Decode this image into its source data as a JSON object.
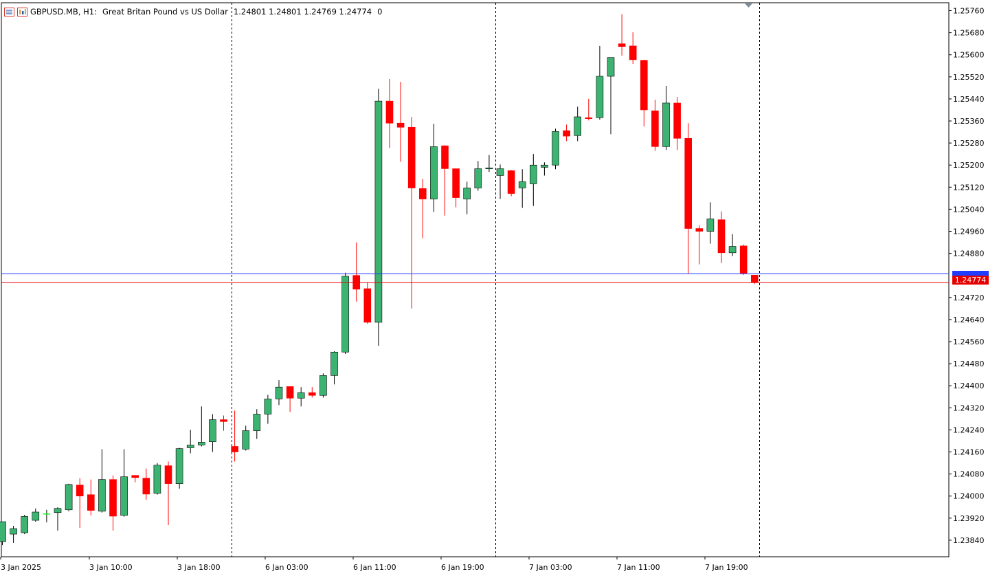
{
  "header": {
    "symbol": "GBPUSD.MB, H1:",
    "description": "Great Britan Pound vs US Dollar",
    "ohlc": "1.24801 1.24801 1.24769 1.24774",
    "volume": "0",
    "icons": [
      "chart-window-icon",
      "chart-properties-icon"
    ]
  },
  "chart_data": {
    "type": "candlestick",
    "symbol": "GBPUSD.MB",
    "timeframe": "H1",
    "ylim": [
      1.238,
      1.2578
    ],
    "y_ticks": [
      "1.25760",
      "1.25680",
      "1.25600",
      "1.25520",
      "1.25440",
      "1.25360",
      "1.25280",
      "1.25200",
      "1.25120",
      "1.25040",
      "1.24960",
      "1.24880",
      "1.24720",
      "1.24640",
      "1.24560",
      "1.24480",
      "1.24400",
      "1.24320",
      "1.24240",
      "1.24160",
      "1.24080",
      "1.24000",
      "1.23920",
      "1.23840"
    ],
    "x_ticks": [
      "3 Jan 2025",
      "3 Jan 10:00",
      "3 Jan 18:00",
      "6 Jan 03:00",
      "6 Jan 11:00",
      "6 Jan 19:00",
      "7 Jan 03:00",
      "7 Jan 11:00",
      "7 Jan 19:00"
    ],
    "bid_price": "1.24774",
    "bid_value": 1.24774,
    "ask_value": 1.24806,
    "up_color": "#3cb371",
    "down_color": "#ff0000",
    "doji_color": "#00ff00",
    "candles": [
      [
        1.23835,
        1.23907,
        1.23822,
        1.23907
      ],
      [
        1.23862,
        1.23892,
        1.2383,
        1.23882
      ],
      [
        1.23867,
        1.23932,
        1.23862,
        1.23926
      ],
      [
        1.23912,
        1.23955,
        1.23907,
        1.23942
      ],
      [
        1.23935,
        1.2395,
        1.23905,
        1.23935
      ],
      [
        1.2394,
        1.2396,
        1.23875,
        1.23955
      ],
      [
        1.2395,
        1.24045,
        1.23945,
        1.24042
      ],
      [
        1.2404,
        1.24065,
        1.23885,
        1.24
      ],
      [
        1.24005,
        1.2406,
        1.2393,
        1.23948
      ],
      [
        1.23945,
        1.2417,
        1.2394,
        1.2406
      ],
      [
        1.2406,
        1.24075,
        1.23875,
        1.23927
      ],
      [
        1.2393,
        1.2417,
        1.23925,
        1.2407
      ],
      [
        1.24075,
        1.24075,
        1.2405,
        1.24067
      ],
      [
        1.24065,
        1.241,
        1.23987,
        1.24007
      ],
      [
        1.2401,
        1.2412,
        1.24005,
        1.24112
      ],
      [
        1.2411,
        1.24125,
        1.23895,
        1.24045
      ],
      [
        1.24045,
        1.24175,
        1.24027,
        1.24172
      ],
      [
        1.24175,
        1.2424,
        1.24155,
        1.24185
      ],
      [
        1.24185,
        1.24325,
        1.2418,
        1.24195
      ],
      [
        1.24197,
        1.24297,
        1.2416,
        1.24277
      ],
      [
        1.24277,
        1.24292,
        1.24237,
        1.2427
      ],
      [
        1.2418,
        1.2431,
        1.24125,
        1.2416
      ],
      [
        1.2417,
        1.24255,
        1.24165,
        1.24237
      ],
      [
        1.24237,
        1.24315,
        1.24207,
        1.24297
      ],
      [
        1.24297,
        1.24367,
        1.24262,
        1.24352
      ],
      [
        1.24352,
        1.2442,
        1.2433,
        1.24395
      ],
      [
        1.24397,
        1.24395,
        1.24305,
        1.24355
      ],
      [
        1.24355,
        1.24395,
        1.24325,
        1.24375
      ],
      [
        1.24375,
        1.24395,
        1.24357,
        1.24365
      ],
      [
        1.24365,
        1.24445,
        1.24357,
        1.24437
      ],
      [
        1.24437,
        1.24525,
        1.24405,
        1.24522
      ],
      [
        1.24522,
        1.2481,
        1.24515,
        1.24797
      ],
      [
        1.248,
        1.2492,
        1.24705,
        1.2475
      ],
      [
        1.24752,
        1.24775,
        1.24625,
        1.2463
      ],
      [
        1.2463,
        1.25477,
        1.24545,
        1.25432
      ],
      [
        1.25432,
        1.25512,
        1.25262,
        1.25352
      ],
      [
        1.25352,
        1.25502,
        1.25212,
        1.25337
      ],
      [
        1.25337,
        1.25375,
        1.2468,
        1.25117
      ],
      [
        1.25115,
        1.2515,
        1.24935,
        1.25077
      ],
      [
        1.25077,
        1.2535,
        1.2503,
        1.25267
      ],
      [
        1.2527,
        1.25272,
        1.25017,
        1.25187
      ],
      [
        1.25187,
        1.25187,
        1.25047,
        1.25082
      ],
      [
        1.25077,
        1.2514,
        1.25022,
        1.25117
      ],
      [
        1.25117,
        1.25215,
        1.25107,
        1.25187
      ],
      [
        1.25187,
        1.25237,
        1.25175,
        1.2519
      ],
      [
        1.25162,
        1.25202,
        1.25077,
        1.25187
      ],
      [
        1.2518,
        1.25182,
        1.25087,
        1.25097
      ],
      [
        1.25117,
        1.25185,
        1.25045,
        1.2514
      ],
      [
        1.25132,
        1.2524,
        1.25052,
        1.252
      ],
      [
        1.25192,
        1.2521,
        1.25162,
        1.252
      ],
      [
        1.252,
        1.25332,
        1.25185,
        1.25322
      ],
      [
        1.25325,
        1.25347,
        1.25287,
        1.25305
      ],
      [
        1.25307,
        1.25412,
        1.25287,
        1.25375
      ],
      [
        1.25372,
        1.2544,
        1.25362,
        1.2537
      ],
      [
        1.25372,
        1.25632,
        1.25365,
        1.25522
      ],
      [
        1.25522,
        1.2559,
        1.25312,
        1.2559
      ],
      [
        1.2564,
        1.25747,
        1.25597,
        1.2563
      ],
      [
        1.25632,
        1.25682,
        1.25567,
        1.25582
      ],
      [
        1.2558,
        1.25582,
        1.2534,
        1.254
      ],
      [
        1.25397,
        1.25437,
        1.25252,
        1.25267
      ],
      [
        1.25267,
        1.25487,
        1.25255,
        1.25425
      ],
      [
        1.25425,
        1.25447,
        1.25255,
        1.25297
      ],
      [
        1.25297,
        1.25352,
        1.24805,
        1.2497
      ],
      [
        1.2497,
        1.24982,
        1.2484,
        1.2496
      ],
      [
        1.2496,
        1.25065,
        1.24915,
        1.25005
      ],
      [
        1.25002,
        1.25032,
        1.24845,
        1.24882
      ],
      [
        1.24882,
        1.2495,
        1.2487,
        1.24905
      ],
      [
        1.24907,
        1.24912,
        1.24802,
        1.24807
      ],
      [
        1.24801,
        1.24801,
        1.24769,
        1.24774
      ]
    ]
  }
}
